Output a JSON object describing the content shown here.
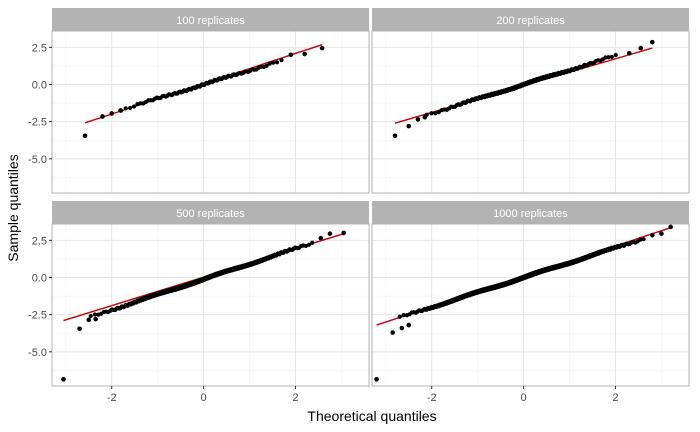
{
  "chart_data": {
    "type": "scatter",
    "xlabel": "Theoretical quantiles",
    "ylabel": "Sample quantiles",
    "xlim": [
      -3.3,
      3.6
    ],
    "ylim": [
      -7.3,
      3.6
    ],
    "x_ticks": [
      -2,
      0,
      2
    ],
    "x_tick_labels": [
      "-2",
      "0",
      "2"
    ],
    "y_ticks": [
      2.5,
      0.0,
      -2.5,
      -5.0
    ],
    "y_tick_labels": [
      "2.5",
      "0.0",
      "-2.5",
      "-5.0"
    ],
    "grid": true,
    "colors": {
      "points": "#000000",
      "reference_line": "#cc0000",
      "strip": "#b3b3b3",
      "panel_border": "#b3b3b3",
      "grid_major": "#e6e6e6",
      "grid_minor": "#f2f2f2"
    },
    "panels": [
      {
        "title": "100 replicates",
        "n": 100,
        "line": {
          "x": [
            -2.58,
            2.58
          ],
          "y": [
            -2.58,
            2.68
          ]
        },
        "tail_points": [
          [
            -2.58,
            -3.45
          ],
          [
            -2.2,
            -2.15
          ],
          [
            -2.0,
            -1.95
          ],
          [
            -1.8,
            -1.75
          ],
          [
            1.9,
            2.0
          ],
          [
            2.2,
            2.05
          ],
          [
            2.58,
            2.45
          ]
        ],
        "fit": {
          "slope": 0.95,
          "intercept": 0.0
        }
      },
      {
        "title": "200 replicates",
        "n": 200,
        "line": {
          "x": [
            -2.8,
            2.8
          ],
          "y": [
            -2.6,
            2.45
          ]
        },
        "tail_points": [
          [
            -2.8,
            -3.45
          ],
          [
            -2.5,
            -2.8
          ],
          [
            -2.3,
            -2.35
          ],
          [
            -2.15,
            -2.2
          ],
          [
            2.3,
            2.1
          ],
          [
            2.55,
            2.45
          ],
          [
            2.8,
            2.85
          ]
        ],
        "fit": {
          "slope": 0.97,
          "intercept": 0.0
        }
      },
      {
        "title": "500 replicates",
        "n": 500,
        "line": {
          "x": [
            -3.05,
            3.05
          ],
          "y": [
            -2.9,
            2.95
          ]
        },
        "tail_points": [
          [
            -3.05,
            -6.85
          ],
          [
            -2.7,
            -3.45
          ],
          [
            -2.5,
            -2.85
          ],
          [
            -2.35,
            -2.8
          ],
          [
            2.55,
            2.65
          ],
          [
            2.75,
            2.95
          ],
          [
            3.05,
            3.0
          ]
        ],
        "fit": {
          "slope": 1.03,
          "intercept": -0.12
        }
      },
      {
        "title": "1000 replicates",
        "n": 1000,
        "line": {
          "x": [
            -3.2,
            3.2
          ],
          "y": [
            -3.2,
            3.35
          ]
        },
        "tail_points": [
          [
            -3.2,
            -6.85
          ],
          [
            -2.85,
            -3.7
          ],
          [
            -2.65,
            -3.4
          ],
          [
            -2.5,
            -3.2
          ],
          [
            2.8,
            2.85
          ],
          [
            3.0,
            2.95
          ],
          [
            3.2,
            3.4
          ]
        ],
        "fit": {
          "slope": 1.0,
          "intercept": 0.0
        }
      }
    ]
  }
}
